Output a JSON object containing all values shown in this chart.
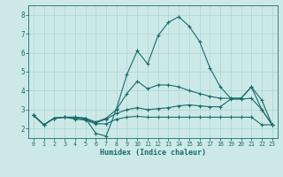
{
  "xlabel": "Humidex (Indice chaleur)",
  "xlim": [
    -0.5,
    23.5
  ],
  "ylim": [
    1.5,
    8.5
  ],
  "xticks": [
    0,
    1,
    2,
    3,
    4,
    5,
    6,
    7,
    8,
    9,
    10,
    11,
    12,
    13,
    14,
    15,
    16,
    17,
    18,
    19,
    20,
    21,
    22,
    23
  ],
  "yticks": [
    2,
    3,
    4,
    5,
    6,
    7,
    8
  ],
  "background_color": "#cce9e8",
  "grid_color": "#aad4d3",
  "line_color": "#1a6b6b",
  "line1_x": [
    0,
    1,
    2,
    3,
    4,
    5,
    6,
    7,
    8,
    9,
    10,
    11,
    12,
    13,
    14,
    15,
    16,
    17,
    18,
    19,
    20,
    21,
    22,
    23
  ],
  "line1_y": [
    2.7,
    2.2,
    2.55,
    2.6,
    2.6,
    2.55,
    1.75,
    1.6,
    3.05,
    4.85,
    6.1,
    5.4,
    6.9,
    7.6,
    7.9,
    7.4,
    6.6,
    5.2,
    4.2,
    3.6,
    3.6,
    4.2,
    3.0,
    2.2
  ],
  "line2_x": [
    0,
    1,
    2,
    3,
    4,
    5,
    6,
    7,
    8,
    9,
    10,
    11,
    12,
    13,
    14,
    15,
    16,
    17,
    18,
    19,
    20,
    21,
    22,
    23
  ],
  "line2_y": [
    2.7,
    2.2,
    2.55,
    2.6,
    2.6,
    2.55,
    2.35,
    2.55,
    3.0,
    3.85,
    4.5,
    4.1,
    4.3,
    4.3,
    4.2,
    4.0,
    3.85,
    3.7,
    3.6,
    3.6,
    3.6,
    4.2,
    3.5,
    2.2
  ],
  "line3_x": [
    0,
    1,
    2,
    3,
    4,
    5,
    6,
    7,
    8,
    9,
    10,
    11,
    12,
    13,
    14,
    15,
    16,
    17,
    18,
    19,
    20,
    21,
    22,
    23
  ],
  "line3_y": [
    2.7,
    2.2,
    2.55,
    2.6,
    2.55,
    2.5,
    2.3,
    2.5,
    2.8,
    3.0,
    3.1,
    3.0,
    3.05,
    3.1,
    3.2,
    3.25,
    3.2,
    3.15,
    3.15,
    3.55,
    3.55,
    3.6,
    3.0,
    2.2
  ],
  "line4_x": [
    0,
    1,
    2,
    3,
    4,
    5,
    6,
    7,
    8,
    9,
    10,
    11,
    12,
    13,
    14,
    15,
    16,
    17,
    18,
    19,
    20,
    21,
    22,
    23
  ],
  "line4_y": [
    2.7,
    2.2,
    2.55,
    2.6,
    2.5,
    2.45,
    2.25,
    2.25,
    2.5,
    2.6,
    2.65,
    2.6,
    2.6,
    2.6,
    2.6,
    2.6,
    2.6,
    2.6,
    2.6,
    2.6,
    2.6,
    2.6,
    2.2,
    2.2
  ]
}
